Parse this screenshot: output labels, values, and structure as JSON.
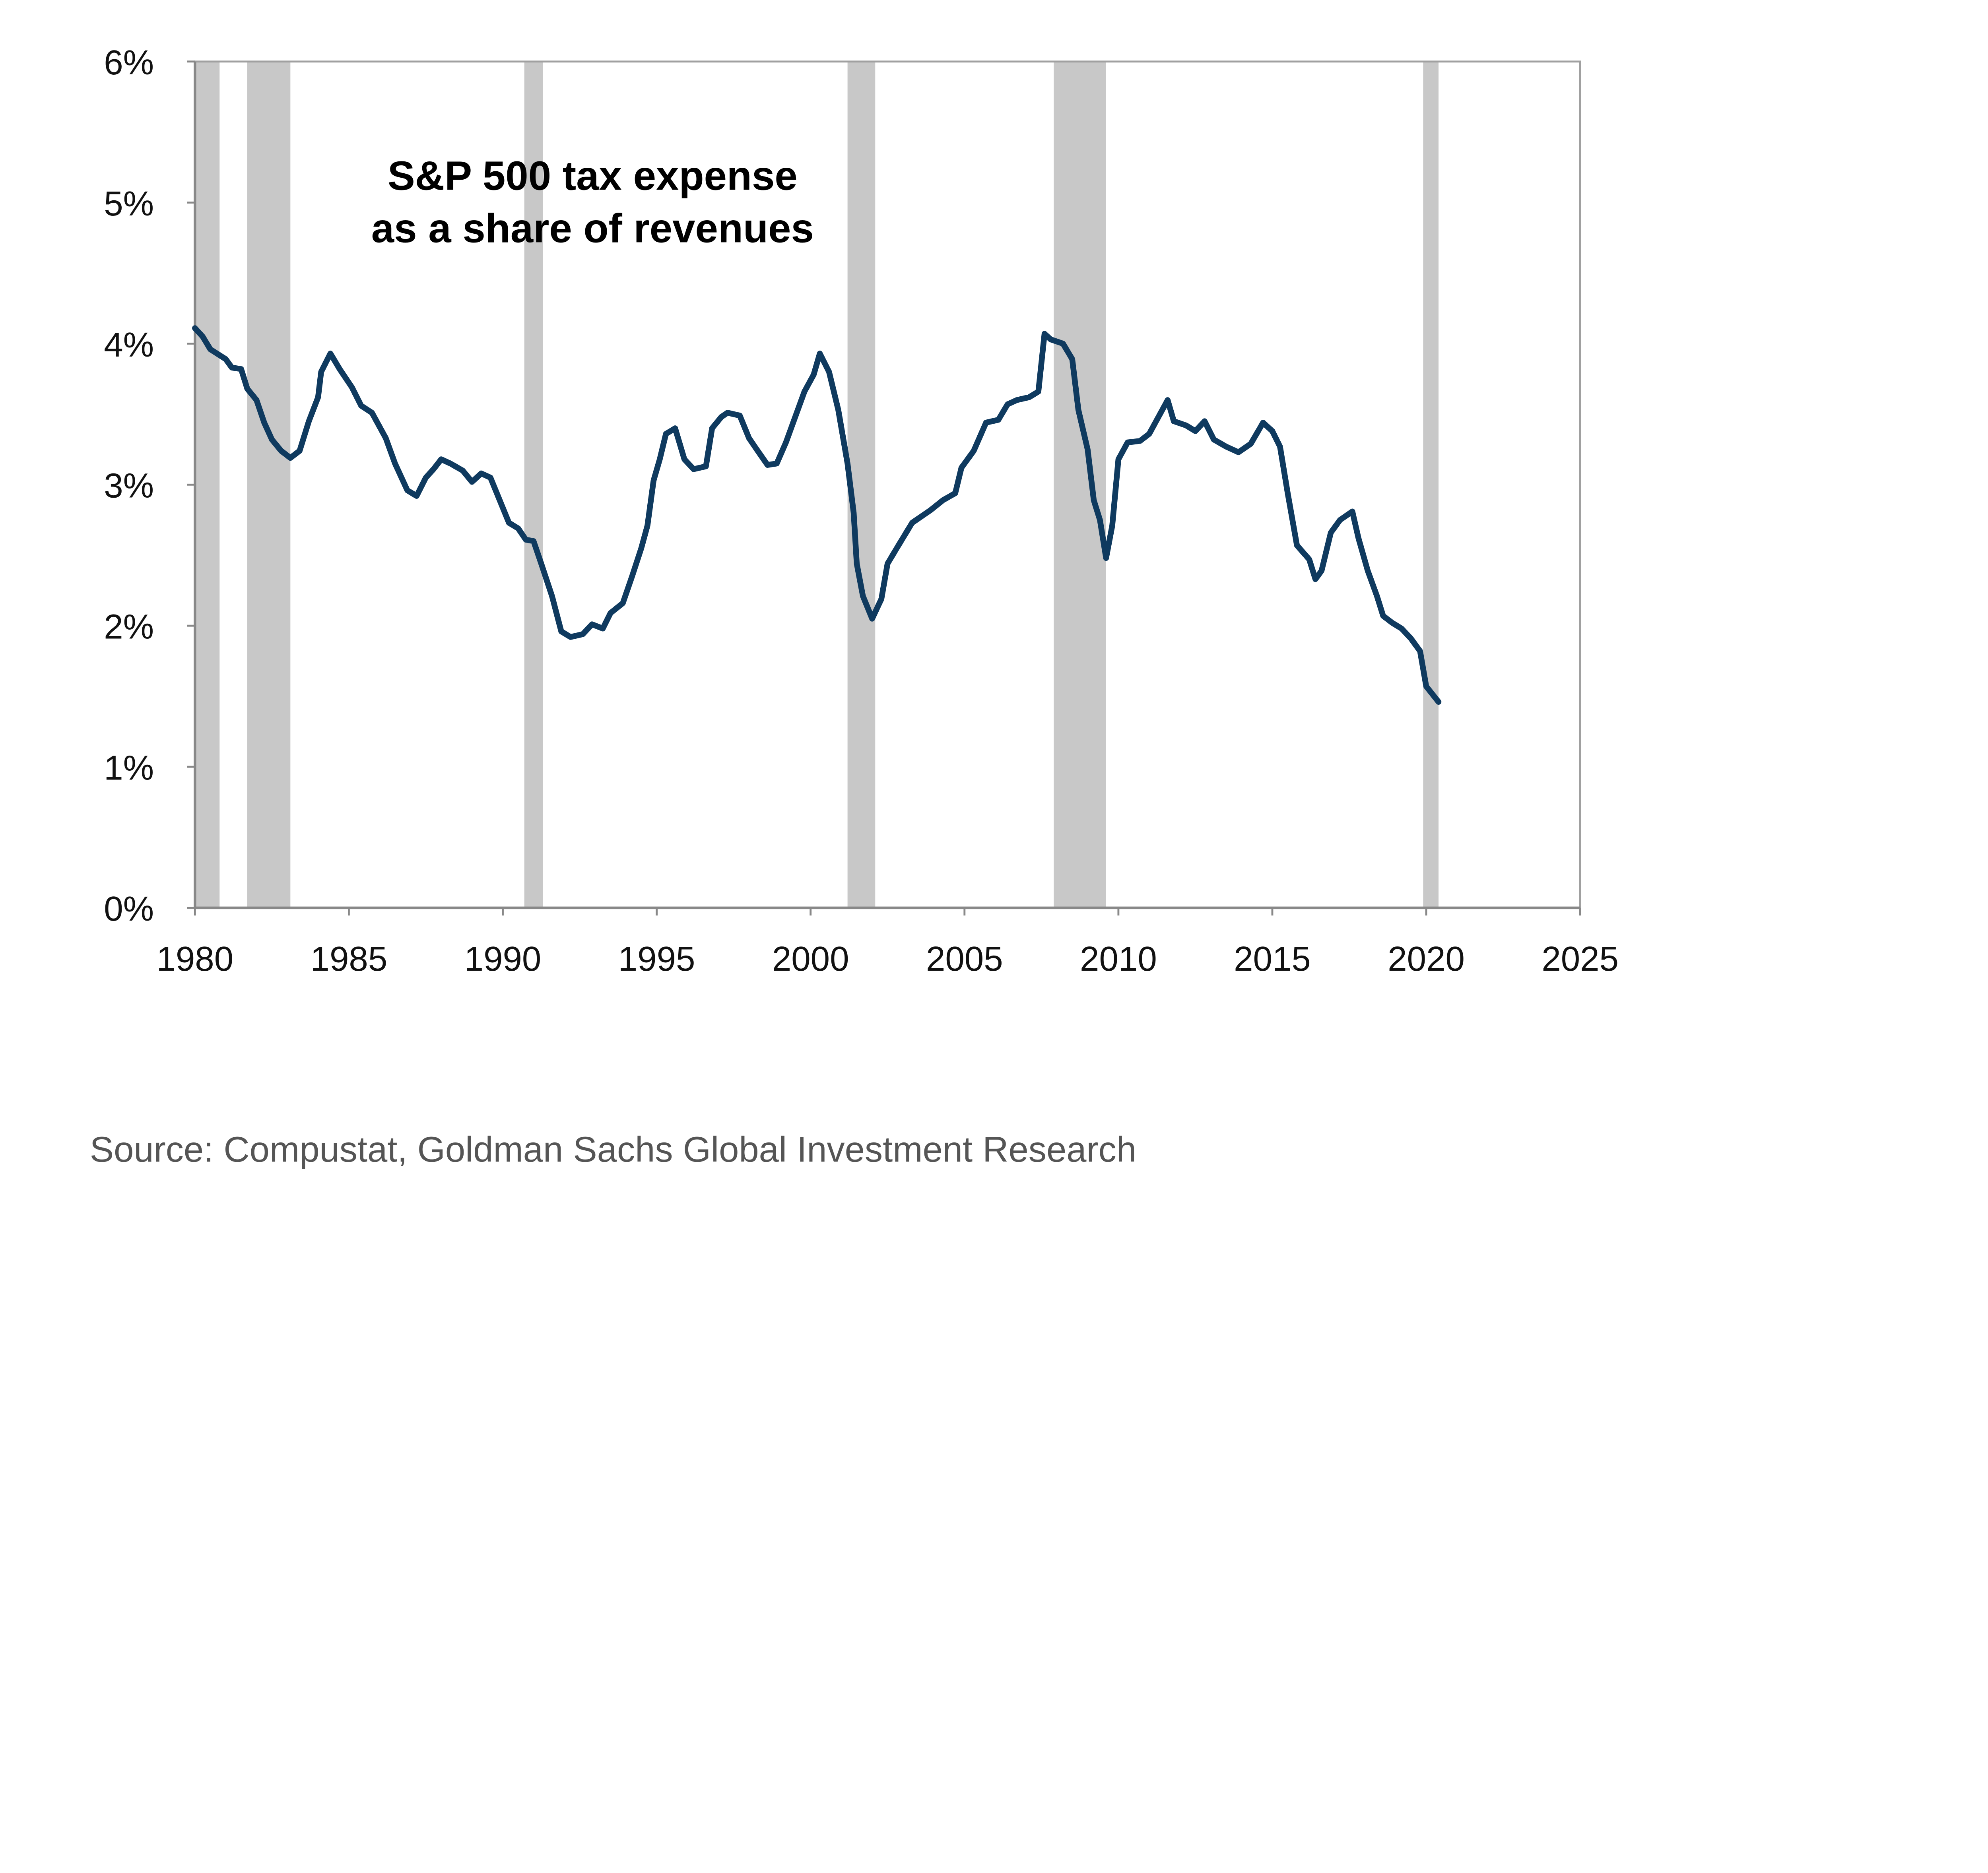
{
  "chart_data": {
    "type": "line",
    "title_lines": [
      "S&P 500 tax expense",
      "as a share of revenues"
    ],
    "xlabel": "",
    "ylabel": "",
    "xlim": [
      1980,
      2025
    ],
    "ylim": [
      0,
      6
    ],
    "x_ticks": [
      "1980",
      "1985",
      "1990",
      "1995",
      "2000",
      "2005",
      "2010",
      "2015",
      "2020",
      "2025"
    ],
    "y_ticks": [
      "0%",
      "1%",
      "2%",
      "3%",
      "4%",
      "5%",
      "6%"
    ],
    "grid": false,
    "legend": "none",
    "line_color": "#0f3a5f",
    "shade_color": "#c8c8c8",
    "recession_shading": [
      [
        1980.0,
        1980.8
      ],
      [
        1981.7,
        1983.1
      ],
      [
        1990.7,
        1991.3
      ],
      [
        2001.2,
        2002.1
      ],
      [
        2007.9,
        2009.6
      ],
      [
        2019.9,
        2020.4
      ]
    ],
    "series": [
      {
        "x": [
          1980.0,
          1980.25,
          1980.5,
          1981.0,
          1981.2,
          1981.5,
          1981.7,
          1982.0,
          1982.25,
          1982.5,
          1982.8,
          1983.1,
          1983.4,
          1983.7,
          1984.0,
          1984.1,
          1984.4,
          1984.7,
          1985.1,
          1985.4,
          1985.75,
          1986.2,
          1986.5,
          1986.9,
          1987.2,
          1987.5,
          1987.75,
          1988.0,
          1988.3,
          1988.7,
          1989.0,
          1989.3,
          1989.6,
          1989.9,
          1990.2,
          1990.5,
          1990.75,
          1991.0,
          1991.25,
          1991.6,
          1991.9,
          1992.2,
          1992.6,
          1992.9,
          1993.25,
          1993.5,
          1993.9,
          1994.2,
          1994.5,
          1994.7,
          1994.9,
          1995.1,
          1995.3,
          1995.6,
          1995.9,
          1996.2,
          1996.6,
          1996.8,
          1997.1,
          1997.3,
          1997.7,
          1998.0,
          1998.25,
          1998.6,
          1998.9,
          1999.2,
          1999.5,
          1999.8,
          2000.1,
          2000.3,
          2000.6,
          2000.9,
          2001.2,
          2001.4,
          2001.5,
          2001.7,
          2002.0,
          2002.3,
          2002.5,
          2002.8,
          2003.3,
          2003.9,
          2004.3,
          2004.7,
          2004.9,
          2005.3,
          2005.7,
          2006.1,
          2006.4,
          2006.7,
          2007.1,
          2007.4,
          2007.6,
          2007.8,
          2008.2,
          2008.5,
          2008.7,
          2009.0,
          2009.2,
          2009.4,
          2009.6,
          2009.8,
          2010.0,
          2010.3,
          2010.7,
          2011.0,
          2011.3,
          2011.6,
          2011.8,
          2012.2,
          2012.5,
          2012.8,
          2013.1,
          2013.5,
          2013.9,
          2014.3,
          2014.7,
          2015.0,
          2015.25,
          2015.5,
          2015.8,
          2016.2,
          2016.4,
          2016.6,
          2016.9,
          2017.2,
          2017.6,
          2017.8,
          2018.1,
          2018.4,
          2018.6,
          2018.9,
          2019.2,
          2019.5,
          2019.8,
          2020.0,
          2020.4
        ],
        "y": [
          4.11,
          4.05,
          3.96,
          3.89,
          3.83,
          3.82,
          3.68,
          3.6,
          3.44,
          3.32,
          3.24,
          3.19,
          3.24,
          3.45,
          3.62,
          3.8,
          3.93,
          3.82,
          3.69,
          3.56,
          3.51,
          3.33,
          3.15,
          2.96,
          2.92,
          3.05,
          3.11,
          3.18,
          3.15,
          3.1,
          3.02,
          3.08,
          3.05,
          2.89,
          2.73,
          2.69,
          2.61,
          2.6,
          2.44,
          2.21,
          1.96,
          1.92,
          1.94,
          2.01,
          1.98,
          2.09,
          2.16,
          2.35,
          2.55,
          2.71,
          3.03,
          3.18,
          3.36,
          3.4,
          3.18,
          3.11,
          3.13,
          3.4,
          3.48,
          3.51,
          3.49,
          3.33,
          3.25,
          3.14,
          3.15,
          3.3,
          3.48,
          3.66,
          3.78,
          3.93,
          3.8,
          3.53,
          3.15,
          2.8,
          2.44,
          2.21,
          2.05,
          2.19,
          2.44,
          2.55,
          2.73,
          2.82,
          2.89,
          2.94,
          3.12,
          3.24,
          3.44,
          3.46,
          3.57,
          3.6,
          3.62,
          3.66,
          4.07,
          4.03,
          4.0,
          3.89,
          3.53,
          3.25,
          2.89,
          2.75,
          2.48,
          2.71,
          3.18,
          3.3,
          3.31,
          3.36,
          3.48,
          3.6,
          3.45,
          3.42,
          3.38,
          3.45,
          3.32,
          3.27,
          3.23,
          3.29,
          3.44,
          3.38,
          3.27,
          2.94,
          2.57,
          2.47,
          2.33,
          2.39,
          2.66,
          2.75,
          2.81,
          2.62,
          2.39,
          2.21,
          2.07,
          2.02,
          1.98,
          1.91,
          1.82,
          1.57,
          1.46
        ]
      }
    ]
  },
  "source": "Source: Compustat, Goldman Sachs Global Investment Research"
}
